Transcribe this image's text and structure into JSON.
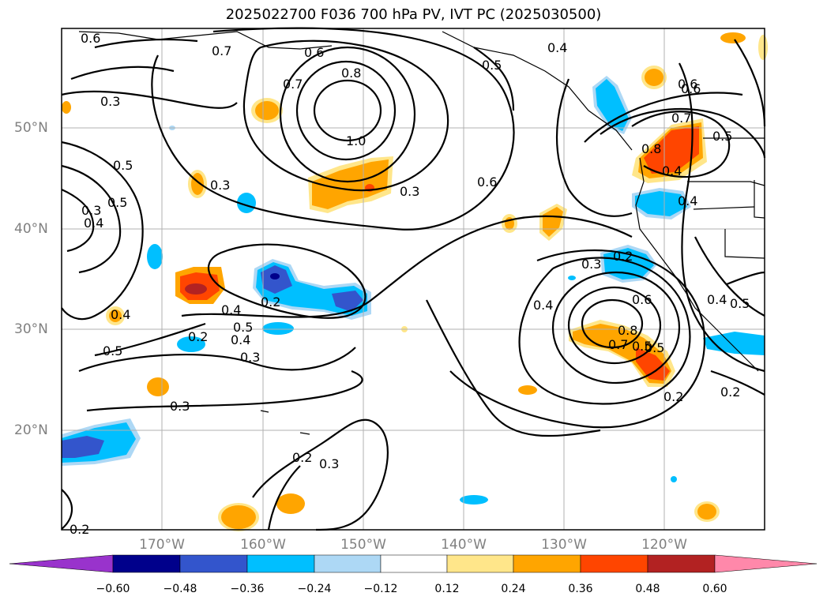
{
  "title": "2025022700 F036 700 hPa PV, IVT PC (2025030500)",
  "lat_labels": [
    "50°N",
    "40°N",
    "30°N",
    "20°N"
  ],
  "lon_labels": [
    "170°W",
    "160°W",
    "150°W",
    "140°W",
    "130°W",
    "120°W"
  ],
  "colorbar": {
    "ticks": [
      "−0.60",
      "−0.48",
      "−0.36",
      "−0.24",
      "−0.12",
      "0.12",
      "0.24",
      "0.36",
      "0.48",
      "0.60"
    ],
    "colors": [
      "#9933cc",
      "#00008b",
      "#3355cc",
      "#00bfff",
      "#add8f5",
      "#ffffff",
      "#ffe68a",
      "#ffa500",
      "#ff4500",
      "#b22222",
      "#ff88aa"
    ]
  },
  "contour_labels": [
    "0.6",
    "0.7",
    "0.6",
    "0.5",
    "0.4",
    "0.5",
    "0.7",
    "0.8",
    "0.3",
    "1.0",
    "0.5",
    "0.3",
    "0.3",
    "0.4",
    "0.6",
    "0.6",
    "0.7",
    "0.8",
    "0.5",
    "0.4",
    "0.4",
    "0.3",
    "0.2",
    "0.4",
    "0.5",
    "0.4",
    "0.3",
    "0.2",
    "0.4",
    "0.5",
    "0.3",
    "0.4",
    "0.6",
    "0.8",
    "0.7",
    "0.5",
    "0.3",
    "0.2",
    "0.3",
    "0.2",
    "0.2",
    "0.2",
    "0.4",
    "0.5",
    "0.6",
    "0.5",
    "0.2"
  ]
}
